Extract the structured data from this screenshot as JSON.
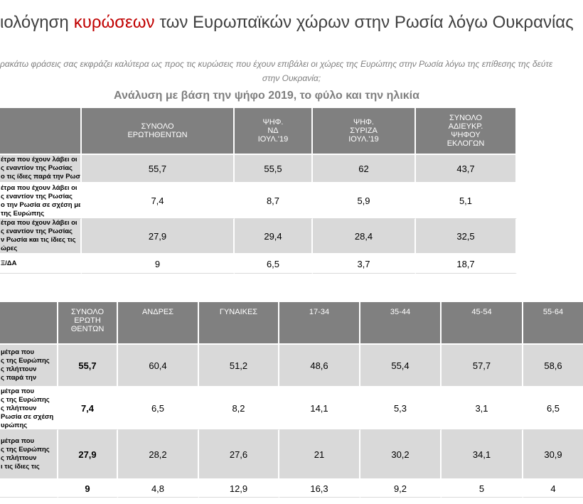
{
  "header": {
    "title": {
      "before": "ιολόγηση",
      "highlight": "κυρώσεων",
      "after": "των Ευρωπαϊκών χώρων στην Ρωσία λόγω Ουκρανίας"
    },
    "question": [
      "ρακάτω φράσεις σας εκφράζει καλύτερα ως προς τις κυρώσεις που έχουν επιβάλει οι χώρες της Ευρώπης στην Ρωσία λόγω της επίθεσης της δεύτε",
      "στην Ουκρανία;"
    ],
    "subtitle": "Ανάλυση με βάση την ψήφο 2019, το φύλο και την ηλικία"
  },
  "tables": [
    {
      "columns": [
        [
          "ΣΥΝΟΛΟ",
          "ΕΡΩΤΗΘΕΝΤΩΝ"
        ],
        [
          "ΨΗΦ.",
          "ΝΔ",
          "ΙΟΥΛ.'19"
        ],
        [
          "ΨΗΦ.",
          "ΣΥΡΙΖΑ",
          "ΙΟΥΛ.'19"
        ],
        [
          "ΣΥΝΟΛΟ",
          "ΑΔΙΕΥΚΡ.",
          "ΨΗΦΟΥ",
          "ΕΚΛΟΓΩΝ"
        ]
      ],
      "rows": [
        {
          "label": [
            "έτρα που έχουν λάβει οι",
            "ς εναντίον της Ρωσίας",
            "ο τις ίδιες παρά την Ρωσία"
          ],
          "cells": [
            "55,7",
            "55,5",
            "62",
            "43,7"
          ]
        },
        {
          "label": [
            "έτρα που έχουν λάβει οι",
            "ς εναντίον της Ρωσίας",
            "ο την Ρωσία σε σχέση με",
            "της Ευρώπης"
          ],
          "cells": [
            "7,4",
            "8,7",
            "5,9",
            "5,1"
          ]
        },
        {
          "label": [
            "έτρα που έχουν λάβει οι",
            "ς εναντίον της Ρωσίας",
            "ν Ρωσία και τις ίδιες τις",
            "ώρες"
          ],
          "cells": [
            "27,9",
            "29,4",
            "28,4",
            "32,5"
          ]
        },
        {
          "label": [
            "Ξ/ΔΑ"
          ],
          "cells": [
            "9",
            "6,5",
            "3,7",
            "18,7"
          ]
        }
      ]
    },
    {
      "columns": [
        [
          "ΣΥΝΟΛΟ",
          "ΕΡΩΤΗ",
          "ΘΕΝΤΩΝ"
        ],
        [
          "ΑΝΔΡΕΣ"
        ],
        [
          "ΓΥΝΑΙΚΕΣ"
        ],
        [
          "17-34"
        ],
        [
          "35-44"
        ],
        [
          "45-54"
        ],
        [
          "55-64"
        ]
      ],
      "rows": [
        {
          "label": [
            "μέτρα που",
            "ς της Ευρώπης",
            "ς πλήττουν",
            "ς παρά την"
          ],
          "cells": [
            "55,7",
            "60,4",
            "51,2",
            "48,6",
            "55,4",
            "57,7",
            "58,6"
          ]
        },
        {
          "label": [
            "μέτρα που",
            "ς της Ευρώπης",
            "ς πλήττουν",
            "Ρωσία σε σχέση",
            "υρώπης"
          ],
          "cells": [
            "7,4",
            "6,5",
            "8,2",
            "14,1",
            "5,3",
            "3,1",
            "6,5"
          ]
        },
        {
          "label": [
            "μέτρα που",
            "ς της Ευρώπης",
            "ς πλήττουν",
            "ι τις ίδιες τις"
          ],
          "cells": [
            "27,9",
            "28,2",
            "27,6",
            "21",
            "30,2",
            "34,1",
            "30,9"
          ]
        },
        {
          "cells": [
            "9",
            "4,8",
            "12,9",
            "16,3",
            "9,2",
            "5",
            "4"
          ]
        }
      ]
    }
  ]
}
